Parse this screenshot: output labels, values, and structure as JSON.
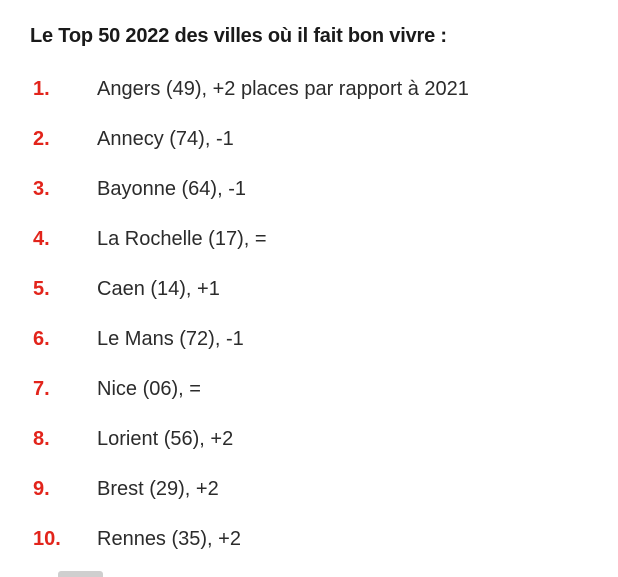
{
  "page": {
    "title": "Le Top 50 2022 des villes où il fait bon vivre :"
  },
  "items": [
    {
      "rank": "1.",
      "text": "Angers (49), +2 places par rapport à 2021"
    },
    {
      "rank": "2.",
      "text": "Annecy (74), -1"
    },
    {
      "rank": "3.",
      "text": "Bayonne (64), -1"
    },
    {
      "rank": "4.",
      "text": "La Rochelle (17), ="
    },
    {
      "rank": "5.",
      "text": "Caen (14), +1"
    },
    {
      "rank": "6.",
      "text": "Le Mans (72), -1"
    },
    {
      "rank": "7.",
      "text": "Nice (06), ="
    },
    {
      "rank": "8.",
      "text": "Lorient (56), +2"
    },
    {
      "rank": "9.",
      "text": "Brest (29), +2"
    },
    {
      "rank": "10.",
      "text": "Rennes (35), +2"
    }
  ],
  "colors": {
    "rank_red": "#e2241b",
    "title": "#1a1a1a",
    "body_text": "#2b2b2b",
    "scrollbar": "#cfcfcf"
  }
}
